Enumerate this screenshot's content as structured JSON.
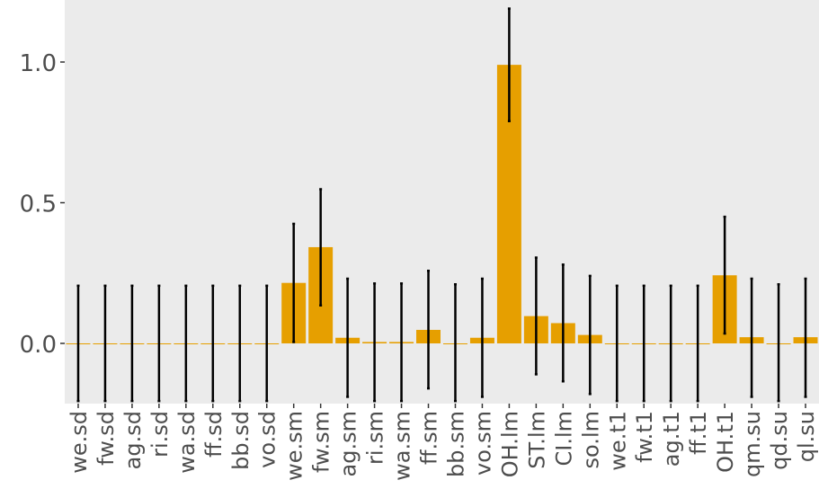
{
  "chart_data": {
    "type": "bar",
    "title": "",
    "xlabel": "",
    "ylabel": "",
    "ylim": [
      -0.21,
      1.23
    ],
    "yticks": [
      0.0,
      0.5,
      1.0
    ],
    "ytick_labels": [
      "0.0",
      "0.5",
      "1.0"
    ],
    "grid": false,
    "legend": "none",
    "colors": {
      "panel_background": "#ebebeb",
      "bar_fill": "#e69f00",
      "error_bar": "#000000",
      "tick_text": "#4d4d4d",
      "tick_mark": "#333333"
    },
    "categories": [
      "we.sd",
      "fw.sd",
      "ag.sd",
      "ri.sd",
      "wa.sd",
      "ff.sd",
      "bb.sd",
      "vo.sd",
      "we.sm",
      "fw.sm",
      "ag.sm",
      "ri.sm",
      "wa.sm",
      "ff.sm",
      "bb.sm",
      "vo.sm",
      "OH.lm",
      "ST.lm",
      "CI.lm",
      "so.lm",
      "we.t1",
      "fw.t1",
      "ag.t1",
      "ff.t1",
      "OH.t1",
      "qm.su",
      "qd.su",
      "ql.su"
    ],
    "values": [
      0.0,
      0.0,
      0.0,
      0.0,
      0.0,
      0.0,
      0.0,
      0.0,
      0.215,
      0.342,
      0.02,
      0.005,
      0.005,
      0.048,
      0.0,
      0.02,
      0.99,
      0.097,
      0.072,
      0.03,
      0.0,
      0.0,
      0.0,
      0.0,
      0.242,
      0.022,
      0.0,
      0.022
    ],
    "error_lower": [
      -0.205,
      -0.205,
      -0.205,
      -0.205,
      -0.205,
      -0.205,
      -0.205,
      -0.205,
      0.005,
      0.135,
      -0.19,
      -0.205,
      -0.205,
      -0.16,
      -0.205,
      -0.19,
      0.79,
      -0.11,
      -0.135,
      -0.18,
      -0.205,
      -0.205,
      -0.205,
      -0.205,
      0.035,
      -0.19,
      -0.205,
      -0.19
    ],
    "error_upper": [
      0.205,
      0.205,
      0.205,
      0.205,
      0.205,
      0.205,
      0.205,
      0.205,
      0.425,
      0.548,
      0.23,
      0.213,
      0.213,
      0.258,
      0.21,
      0.23,
      1.19,
      0.305,
      0.28,
      0.24,
      0.205,
      0.205,
      0.205,
      0.205,
      0.45,
      0.23,
      0.21,
      0.23
    ]
  }
}
